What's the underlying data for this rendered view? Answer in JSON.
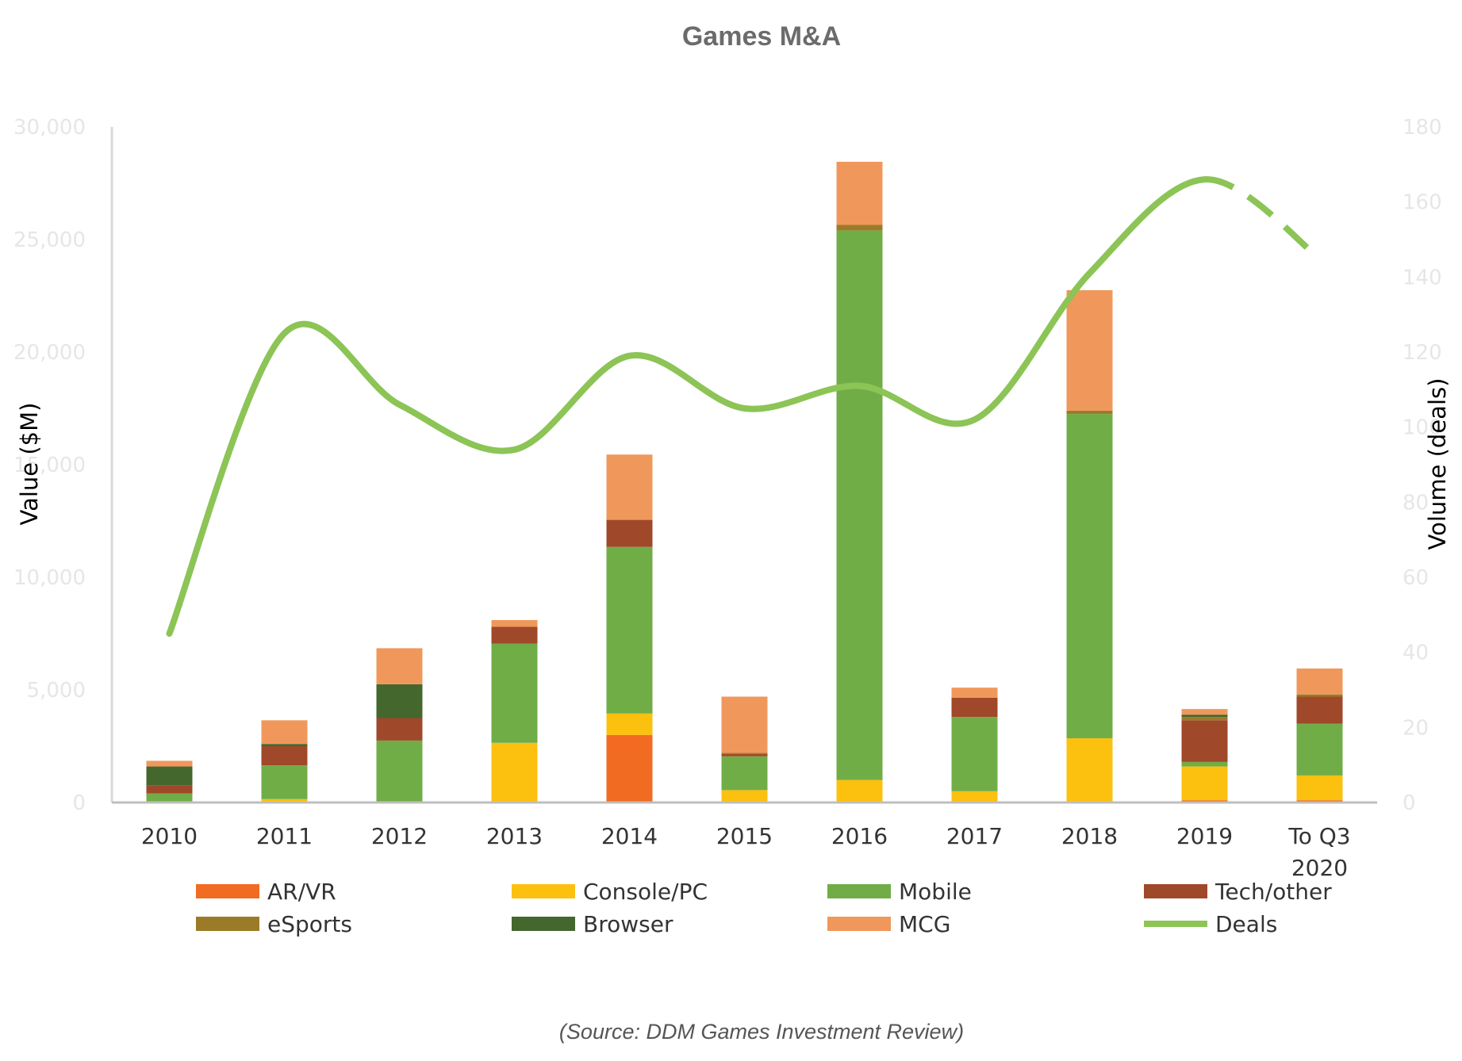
{
  "chart_data": {
    "type": "bar",
    "title": "Games M&A",
    "ylabel": "Value ($M)",
    "y2label": "Volume (deals)",
    "source": "(Source: DDM Games Investment Review)",
    "categories": [
      "2010",
      "2011",
      "2012",
      "2013",
      "2014",
      "2015",
      "2016",
      "2017",
      "2018",
      "2019",
      "To Q3 2020"
    ],
    "ylim": [
      0,
      30000
    ],
    "y_ticks": [
      "0",
      "5,000",
      "10,000",
      "15,000",
      "20,000",
      "25,000",
      "30,000"
    ],
    "y2lim": [
      0,
      180
    ],
    "y2_ticks": [
      "0",
      "20",
      "40",
      "60",
      "80",
      "100",
      "120",
      "140",
      "160",
      "180"
    ],
    "series": [
      {
        "name": "AR/VR",
        "color": "#f26b22",
        "values": [
          0,
          0,
          0,
          0,
          3000,
          0,
          0,
          0,
          0,
          100,
          100
        ]
      },
      {
        "name": "Console/PC",
        "color": "#fcc00f",
        "values": [
          0,
          150,
          0,
          2650,
          950,
          550,
          1000,
          500,
          2850,
          1500,
          1100
        ]
      },
      {
        "name": "Mobile",
        "color": "#70ad47",
        "values": [
          400,
          1500,
          2750,
          4400,
          7400,
          1500,
          24400,
          3300,
          14400,
          200,
          2300
        ]
      },
      {
        "name": "Tech/other",
        "color": "#a0482a",
        "values": [
          350,
          850,
          1000,
          750,
          1200,
          100,
          0,
          850,
          0,
          1850,
          1200
        ]
      },
      {
        "name": "eSports",
        "color": "#9c7b28",
        "values": [
          0,
          0,
          0,
          0,
          0,
          50,
          250,
          0,
          150,
          150,
          100
        ]
      },
      {
        "name": "Browser",
        "color": "#44672e",
        "values": [
          850,
          100,
          1500,
          0,
          0,
          0,
          0,
          0,
          0,
          100,
          0
        ]
      },
      {
        "name": "MCG",
        "color": "#f0985b",
        "values": [
          250,
          1050,
          1600,
          300,
          2900,
          2500,
          2800,
          450,
          5350,
          250,
          1150
        ]
      }
    ],
    "line_series": {
      "name": "Deals",
      "color": "#8cc456",
      "axis": "right",
      "values": [
        45,
        125,
        106,
        94,
        119,
        105,
        111,
        102,
        141,
        166,
        145
      ],
      "dashed_segments_from_index": 9
    },
    "legend_position": "bottom",
    "grid": false
  }
}
